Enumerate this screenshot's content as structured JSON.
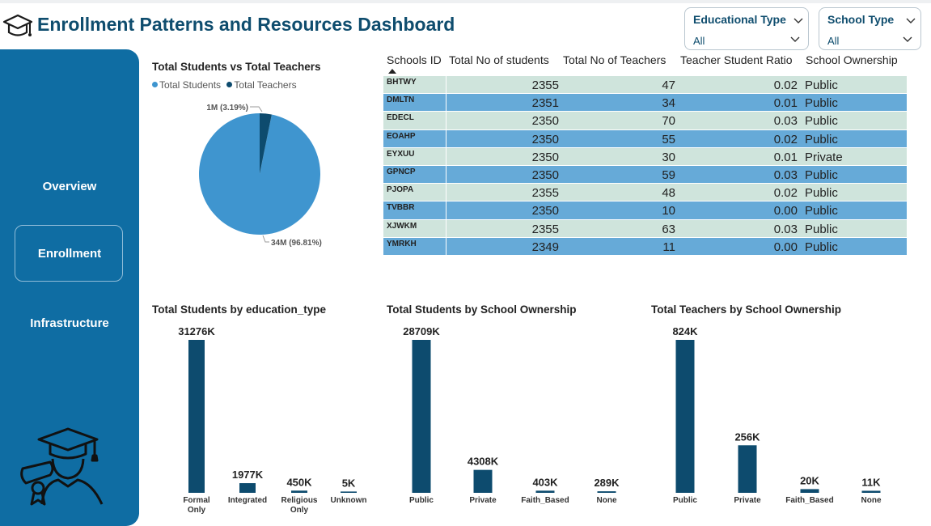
{
  "header": {
    "title": "Enrollment Patterns and Resources Dashboard",
    "title_icon": "graduation-cap-icon"
  },
  "filters": {
    "educational_type": {
      "label": "Educational Type",
      "value": "All"
    },
    "school_type": {
      "label": "School Type",
      "value": "All"
    }
  },
  "sidebar": {
    "items": [
      {
        "label": "Overview",
        "active": false
      },
      {
        "label": "Enrollment",
        "active": true
      },
      {
        "label": "Infrastructure",
        "active": false
      }
    ],
    "illustration": "graduate-with-diploma-icon"
  },
  "pie": {
    "title": "Total Students vs Total Teachers",
    "legend": [
      "Total Students",
      "Total Teachers"
    ],
    "colors": [
      "#3f95cf",
      "#0d4b6e"
    ],
    "slices": [
      {
        "name": "Total Students",
        "label": "34M (96.81%)",
        "pct": 96.81
      },
      {
        "name": "Total Teachers",
        "label": "1M (3.19%)",
        "pct": 3.19
      }
    ]
  },
  "table": {
    "columns": [
      "Schools ID",
      "Total No of students",
      "Total No of Teachers",
      "Teacher Student Ratio",
      "School Ownership"
    ],
    "rows": [
      [
        "BHTWY",
        "2355",
        "47",
        "0.02",
        "Public"
      ],
      [
        "DMLTN",
        "2351",
        "34",
        "0.01",
        "Public"
      ],
      [
        "EDECL",
        "2350",
        "70",
        "0.03",
        "Public"
      ],
      [
        "EOAHP",
        "2350",
        "55",
        "0.02",
        "Public"
      ],
      [
        "EYXUU",
        "2350",
        "30",
        "0.01",
        "Private"
      ],
      [
        "GPNCP",
        "2350",
        "59",
        "0.03",
        "Public"
      ],
      [
        "PJOPA",
        "2355",
        "48",
        "0.02",
        "Public"
      ],
      [
        "TVBBR",
        "2350",
        "10",
        "0.00",
        "Public"
      ],
      [
        "XJWKM",
        "2355",
        "63",
        "0.03",
        "Public"
      ],
      [
        "YMRKH",
        "2349",
        "11",
        "0.00",
        "Public"
      ]
    ],
    "colors": {
      "light": "#cfe4dc",
      "dark": "#66aad8"
    }
  },
  "chart_data": [
    {
      "type": "bar",
      "title": "Total Students by education_type",
      "categories": [
        "Formal Only",
        "Integrated",
        "Religious Only",
        "Unknown"
      ],
      "values": [
        31276,
        1977,
        450,
        5
      ],
      "labels": [
        "31276K",
        "1977K",
        "450K",
        "5K"
      ],
      "unit": "K",
      "color": "#0d4b6e"
    },
    {
      "type": "bar",
      "title": "Total Students by School Ownership",
      "categories": [
        "Public",
        "Private",
        "Faith_Based",
        "None"
      ],
      "values": [
        28709,
        4308,
        403,
        289
      ],
      "labels": [
        "28709K",
        "4308K",
        "403K",
        "289K"
      ],
      "unit": "K",
      "color": "#0d4b6e"
    },
    {
      "type": "bar",
      "title": "Total Teachers by School Ownership",
      "categories": [
        "Public",
        "Private",
        "Faith_Based",
        "None"
      ],
      "values": [
        824,
        256,
        20,
        11
      ],
      "labels": [
        "824K",
        "256K",
        "20K",
        "11K"
      ],
      "unit": "K",
      "color": "#0d4b6e"
    }
  ]
}
